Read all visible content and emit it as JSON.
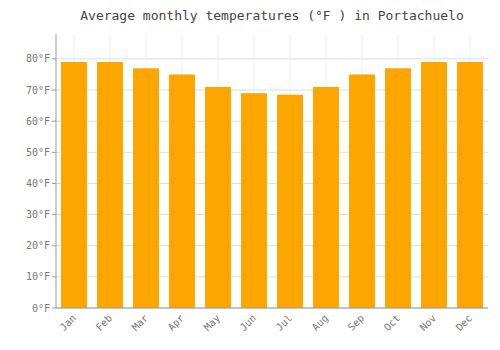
{
  "chart_data": {
    "type": "bar",
    "title": "Average monthly temperatures (°F ) in Portachuelo",
    "categories": [
      "Jan",
      "Feb",
      "Mar",
      "Apr",
      "May",
      "Jun",
      "Jul",
      "Aug",
      "Sep",
      "Oct",
      "Nov",
      "Dec"
    ],
    "values": [
      79,
      79,
      77,
      75,
      71,
      69,
      68.5,
      71,
      75,
      77,
      79,
      79
    ],
    "color": "#FFA500",
    "ylim": [
      0,
      88
    ],
    "yticks": [
      {
        "value": 0,
        "label": "0°F"
      },
      {
        "value": 10,
        "label": "10°F"
      },
      {
        "value": 20,
        "label": "20°F"
      },
      {
        "value": 30,
        "label": "30°F"
      },
      {
        "value": 40,
        "label": "40°F"
      },
      {
        "value": 50,
        "label": "50°F"
      },
      {
        "value": 60,
        "label": "60°F"
      },
      {
        "value": 70,
        "label": "70°F"
      },
      {
        "value": 80,
        "label": "80°F"
      }
    ],
    "grid": true
  }
}
